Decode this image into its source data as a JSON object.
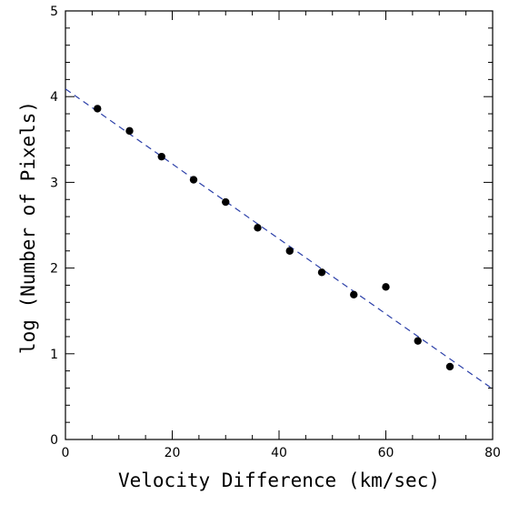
{
  "chart_data": {
    "type": "scatter",
    "title": "",
    "xlabel": "Velocity Difference (km/sec)",
    "ylabel": "log (Number of Pixels)",
    "xlim": [
      0,
      80
    ],
    "ylim": [
      0,
      5
    ],
    "x_ticks": [
      "0",
      "20",
      "40",
      "60",
      "80"
    ],
    "y_ticks": [
      "0",
      "1",
      "2",
      "3",
      "4",
      "5"
    ],
    "grid": false,
    "legend": "none",
    "series": [
      {
        "points": [
          {
            "x": 6,
            "y": 3.86
          },
          {
            "x": 12,
            "y": 3.6
          },
          {
            "x": 18,
            "y": 3.3
          },
          {
            "x": 24,
            "y": 3.03
          },
          {
            "x": 30,
            "y": 2.77
          },
          {
            "x": 36,
            "y": 2.47
          },
          {
            "x": 42,
            "y": 2.2
          },
          {
            "x": 48,
            "y": 1.95
          },
          {
            "x": 54,
            "y": 1.69
          },
          {
            "x": 60,
            "y": 1.78
          },
          {
            "x": 66,
            "y": 1.15
          },
          {
            "x": 72,
            "y": 0.85
          }
        ],
        "color": "#000000"
      }
    ],
    "fit_line": {
      "x": [
        0,
        80
      ],
      "y": [
        4.09,
        0.59
      ],
      "style": "dashed",
      "color": "#2b3fa8"
    }
  }
}
